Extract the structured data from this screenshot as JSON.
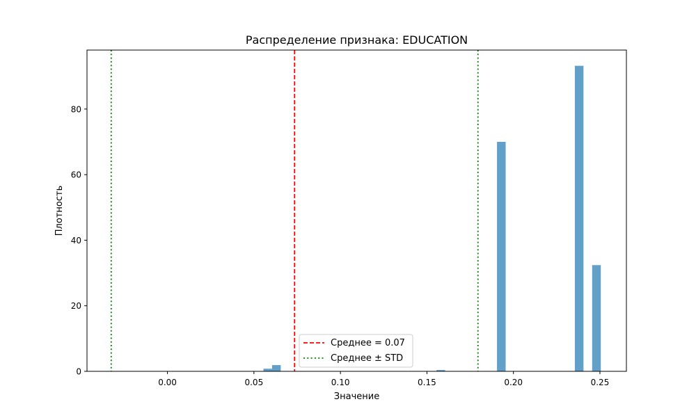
{
  "chart_data": {
    "type": "histogram",
    "title": "Распределение признака: EDUCATION",
    "xlabel": "Значение",
    "ylabel": "Плотность",
    "xlim": [
      -0.0465,
      0.2653
    ],
    "ylim": [
      0,
      98
    ],
    "xticks": [
      0.0,
      0.05,
      0.1,
      0.15,
      0.2,
      0.25
    ],
    "xtick_labels": [
      "0.00",
      "0.05",
      "0.10",
      "0.15",
      "0.20",
      "0.25"
    ],
    "yticks": [
      0,
      20,
      40,
      60,
      80
    ],
    "ytick_labels": [
      "0",
      "20",
      "40",
      "60",
      "80"
    ],
    "bin_width": 0.005,
    "bar_color": "#1f77b4",
    "bar_alpha": 0.7,
    "bins": [
      {
        "x0": 0.0555,
        "x1": 0.0605,
        "value": 0.8
      },
      {
        "x0": 0.0605,
        "x1": 0.0655,
        "value": 1.9
      },
      {
        "x0": 0.1555,
        "x1": 0.1605,
        "value": 0.4
      },
      {
        "x0": 0.1905,
        "x1": 0.1955,
        "value": 70.0
      },
      {
        "x0": 0.2355,
        "x1": 0.2405,
        "value": 93.2
      },
      {
        "x0": 0.2455,
        "x1": 0.2505,
        "value": 32.4
      }
    ],
    "mean": 0.0735,
    "std": 0.106,
    "mean_line_color": "#ff0000",
    "std_line_color": "#008000",
    "legend": {
      "placement": "lower center",
      "entries": [
        {
          "label": "Среднее = 0.07",
          "style": "dashed",
          "color": "#ff0000"
        },
        {
          "label": "Среднее ± STD",
          "style": "dotted",
          "color": "#008000"
        }
      ]
    },
    "grid": false
  }
}
